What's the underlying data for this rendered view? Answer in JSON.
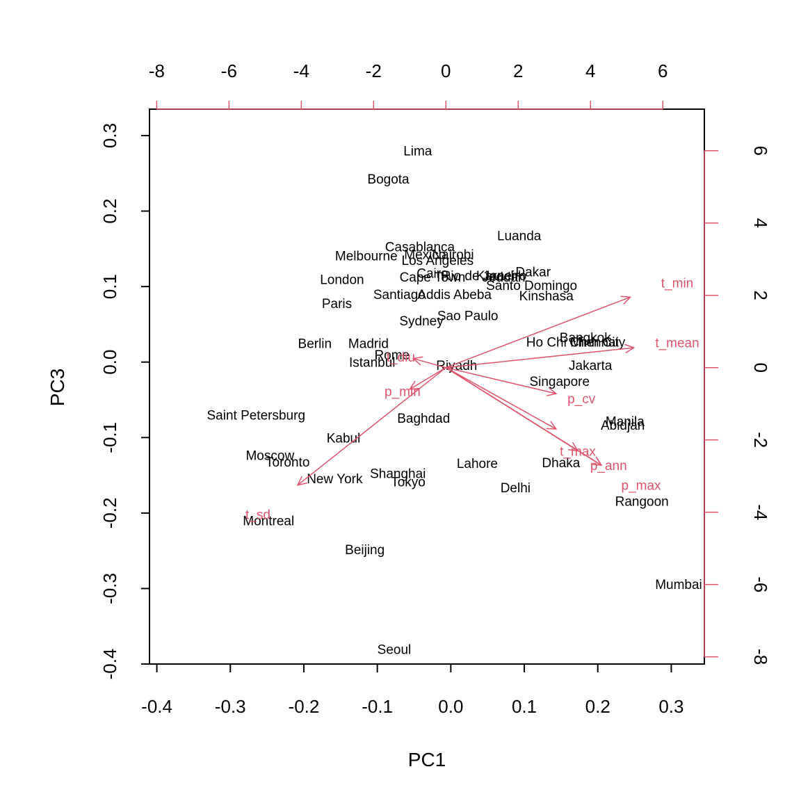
{
  "chart_data": {
    "type": "scatter",
    "xlabel": "PC1",
    "ylabel": "PC3",
    "xlim": [
      -0.41,
      0.345
    ],
    "ylim": [
      -0.4,
      0.335
    ],
    "xticks": [
      -0.4,
      -0.3,
      -0.2,
      -0.1,
      0.0,
      0.1,
      0.2,
      0.3
    ],
    "xtick_labels": [
      "-0.4",
      "-0.3",
      "-0.2",
      "-0.1",
      "0.0",
      "0.1",
      "0.2",
      "0.3"
    ],
    "yticks": [
      -0.4,
      -0.3,
      -0.2,
      -0.1,
      0.0,
      0.1,
      0.2,
      0.3
    ],
    "ytick_labels": [
      "-0.4",
      "-0.3",
      "-0.2",
      "-0.1",
      "0.0",
      "0.1",
      "0.2",
      "0.3"
    ],
    "top_xlim": [
      -8.2,
      7.15
    ],
    "top_xticks": [
      -8,
      -6,
      -4,
      -2,
      0,
      2,
      4,
      6
    ],
    "top_xtick_labels": [
      "-8",
      "-6",
      "-4",
      "-2",
      "0",
      "2",
      "4",
      "6"
    ],
    "right_ylim": [
      -8.2,
      7.15
    ],
    "right_yticks": [
      -8,
      -6,
      -4,
      -2,
      0,
      2,
      4,
      6
    ],
    "right_ytick_labels": [
      "-8",
      "-6",
      "-4",
      "-2",
      "0",
      "2",
      "4",
      "6"
    ],
    "grid": false,
    "point_color": "#000000",
    "arrow_color": "#DF536B",
    "points": [
      {
        "label": "Lima",
        "x": -0.045,
        "y": 0.28
      },
      {
        "label": "Bogota",
        "x": -0.085,
        "y": 0.243
      },
      {
        "label": "Luanda",
        "x": 0.093,
        "y": 0.168
      },
      {
        "label": "Casablanca",
        "x": -0.042,
        "y": 0.153
      },
      {
        "label": "Mexico",
        "x": -0.035,
        "y": 0.143
      },
      {
        "label": "Nairobi",
        "x": 0.003,
        "y": 0.143
      },
      {
        "label": "Melbourne",
        "x": -0.115,
        "y": 0.141
      },
      {
        "label": "Los Angeles",
        "x": -0.018,
        "y": 0.135
      },
      {
        "label": "Dakar",
        "x": 0.112,
        "y": 0.12
      },
      {
        "label": "Cairo",
        "x": -0.025,
        "y": 0.118
      },
      {
        "label": "Rio de Janeiro",
        "x": 0.045,
        "y": 0.115
      },
      {
        "label": "Karachi",
        "x": 0.065,
        "y": 0.115
      },
      {
        "label": "Cape Town",
        "x": -0.025,
        "y": 0.113
      },
      {
        "label": "Jeddah",
        "x": 0.072,
        "y": 0.113
      },
      {
        "label": "London",
        "x": -0.148,
        "y": 0.11
      },
      {
        "label": "Santo Domingo",
        "x": 0.11,
        "y": 0.102
      },
      {
        "label": "Santiago",
        "x": -0.07,
        "y": 0.09
      },
      {
        "label": "Addis Abeba",
        "x": 0.005,
        "y": 0.09
      },
      {
        "label": "Kinshasa",
        "x": 0.13,
        "y": 0.088
      },
      {
        "label": "Paris",
        "x": -0.155,
        "y": 0.078
      },
      {
        "label": "Sao Paulo",
        "x": 0.023,
        "y": 0.062
      },
      {
        "label": "Sydney",
        "x": -0.04,
        "y": 0.055
      },
      {
        "label": "Bangkok",
        "x": 0.183,
        "y": 0.033
      },
      {
        "label": "Berlin",
        "x": -0.185,
        "y": 0.025
      },
      {
        "label": "Madrid",
        "x": -0.112,
        "y": 0.025
      },
      {
        "label": "Ho Chi Minh City",
        "x": 0.17,
        "y": 0.027
      },
      {
        "label": "Chennai",
        "x": 0.195,
        "y": 0.027
      },
      {
        "label": "Rome",
        "x": -0.08,
        "y": 0.01
      },
      {
        "label": "Istanbul",
        "x": -0.107,
        "y": 0.0
      },
      {
        "label": "Riyadh",
        "x": 0.008,
        "y": -0.004
      },
      {
        "label": "Jakarta",
        "x": 0.19,
        "y": -0.004
      },
      {
        "label": "Singapore",
        "x": 0.148,
        "y": -0.025
      },
      {
        "label": "Saint Petersburg",
        "x": -0.265,
        "y": -0.07
      },
      {
        "label": "Baghdad",
        "x": -0.037,
        "y": -0.074
      },
      {
        "label": "Manila",
        "x": 0.237,
        "y": -0.078
      },
      {
        "label": "Abidjan",
        "x": 0.234,
        "y": -0.083
      },
      {
        "label": "Kabul",
        "x": -0.146,
        "y": -0.1
      },
      {
        "label": "Moscow",
        "x": -0.246,
        "y": -0.123
      },
      {
        "label": "Toronto",
        "x": -0.222,
        "y": -0.132
      },
      {
        "label": "Lahore",
        "x": 0.036,
        "y": -0.134
      },
      {
        "label": "Dhaka",
        "x": 0.15,
        "y": -0.133
      },
      {
        "label": "Shanghai",
        "x": -0.072,
        "y": -0.147
      },
      {
        "label": "New York",
        "x": -0.158,
        "y": -0.154
      },
      {
        "label": "Tokyo",
        "x": -0.058,
        "y": -0.158
      },
      {
        "label": "Delhi",
        "x": 0.088,
        "y": -0.166
      },
      {
        "label": "Rangoon",
        "x": 0.26,
        "y": -0.184
      },
      {
        "label": "Montreal",
        "x": -0.248,
        "y": -0.21
      },
      {
        "label": "Beijing",
        "x": -0.117,
        "y": -0.248
      },
      {
        "label": "Mumbai",
        "x": 0.31,
        "y": -0.294
      },
      {
        "label": "Seoul",
        "x": -0.077,
        "y": -0.38
      }
    ],
    "arrows": [
      {
        "name": "t_min",
        "x": 5.1,
        "y": 1.95,
        "label_x": 6.4,
        "label_y": 2.35
      },
      {
        "name": "t_mean",
        "x": 5.2,
        "y": 0.55,
        "label_x": 6.4,
        "label_y": 0.7
      },
      {
        "name": "t_diu",
        "x": -0.9,
        "y": 0.25,
        "label_x": -1.25,
        "label_y": 0.3
      },
      {
        "name": "p_min",
        "x": -1.0,
        "y": -0.6,
        "label_x": -1.2,
        "label_y": -0.65
      },
      {
        "name": "p_cv",
        "x": 3.05,
        "y": -0.72,
        "label_x": 3.75,
        "label_y": -0.85
      },
      {
        "name": "t_max",
        "x": 3.05,
        "y": -1.7,
        "label_x": 3.65,
        "label_y": -2.3
      },
      {
        "name": "t_max_2",
        "x": 3.65,
        "y": -2.3,
        "label_x": null,
        "label_y": null
      },
      {
        "name": "p_ann",
        "x": 4.3,
        "y": -2.7,
        "label_x": 4.5,
        "label_y": -2.7
      },
      {
        "name": "p_max",
        "x": 4.3,
        "y": -2.7,
        "label_x": 5.4,
        "label_y": -3.25
      },
      {
        "name": "t_sd",
        "x": -4.1,
        "y": -3.25,
        "label_x": -5.2,
        "label_y": -4.05
      }
    ],
    "arrow_labels": [
      "t_min",
      "t_mean",
      "t_diu",
      "p_min",
      "p_cv",
      "t_max",
      "p_ann",
      "p_max",
      "t_sd"
    ]
  }
}
